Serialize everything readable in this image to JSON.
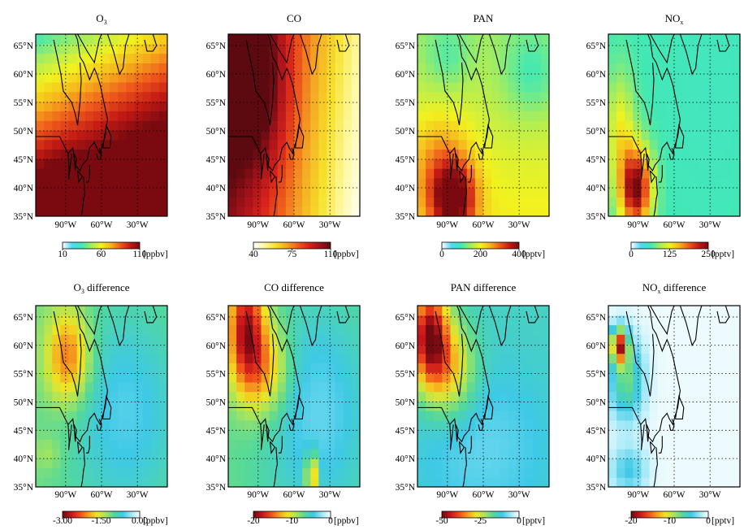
{
  "chart_data": [
    {
      "type": "heatmap",
      "title": "O₃",
      "title_base": "O",
      "title_sub": "3",
      "title_suffix": "",
      "field": "o3",
      "colormap": "jet_r",
      "colorbar": {
        "ticks": [
          "10",
          "60",
          "110"
        ],
        "unit": "[ppbv]",
        "range": [
          10,
          110
        ]
      },
      "xticks": [
        "90°W",
        "60°W",
        "30°W"
      ],
      "yticks": [
        "65°N",
        "60°N",
        "55°N",
        "50°N",
        "45°N",
        "40°N",
        "35°N"
      ],
      "xlim": [
        -115,
        -5
      ],
      "ylim": [
        35,
        67
      ]
    },
    {
      "type": "heatmap",
      "title": "CO",
      "title_base": "CO",
      "title_sub": "",
      "title_suffix": "",
      "field": "co",
      "colormap": "hot_r",
      "colorbar": {
        "ticks": [
          "40",
          "75",
          "110"
        ],
        "unit": "[ppbv]",
        "range": [
          40,
          110
        ]
      },
      "xticks": [
        "90°W",
        "60°W",
        "30°W"
      ],
      "yticks": [
        "65°N",
        "60°N",
        "55°N",
        "50°N",
        "45°N",
        "40°N",
        "35°N"
      ],
      "xlim": [
        -115,
        -5
      ],
      "ylim": [
        35,
        67
      ]
    },
    {
      "type": "heatmap",
      "title": "PAN",
      "title_base": "PAN",
      "title_sub": "",
      "title_suffix": "",
      "field": "pan",
      "colormap": "jet_r",
      "colorbar": {
        "ticks": [
          "0",
          "200",
          "400"
        ],
        "unit": "[pptv]",
        "range": [
          0,
          400
        ]
      },
      "xticks": [
        "90°W",
        "60°W",
        "30°W"
      ],
      "yticks": [
        "65°N",
        "60°N",
        "55°N",
        "50°N",
        "45°N",
        "40°N",
        "35°N"
      ],
      "xlim": [
        -115,
        -5
      ],
      "ylim": [
        35,
        67
      ]
    },
    {
      "type": "heatmap",
      "title": "NOₓ",
      "title_base": "NO",
      "title_sub": "x",
      "title_suffix": "",
      "field": "nox",
      "colormap": "jet_r",
      "colorbar": {
        "ticks": [
          "0",
          "125",
          "250"
        ],
        "unit": "[pptv]",
        "range": [
          0,
          250
        ]
      },
      "xticks": [
        "90°W",
        "60°W",
        "30°W"
      ],
      "yticks": [
        "65°N",
        "60°N",
        "55°N",
        "50°N",
        "45°N",
        "40°N",
        "35°N"
      ],
      "xlim": [
        -115,
        -5
      ],
      "ylim": [
        35,
        67
      ]
    },
    {
      "type": "heatmap",
      "title": "O₃ difference",
      "title_base": "O",
      "title_sub": "3",
      "title_suffix": " difference",
      "field": "do3",
      "colormap": "diff",
      "colorbar": {
        "ticks": [
          "-3.00",
          "-1.50",
          "0.00"
        ],
        "unit": "[ppbv]",
        "range": [
          -3,
          0
        ]
      },
      "xticks": [
        "90°W",
        "60°W",
        "30°W"
      ],
      "yticks": [
        "65°N",
        "60°N",
        "55°N",
        "50°N",
        "45°N",
        "40°N",
        "35°N"
      ],
      "xlim": [
        -115,
        -5
      ],
      "ylim": [
        35,
        67
      ]
    },
    {
      "type": "heatmap",
      "title": "CO difference",
      "title_base": "CO",
      "title_sub": "",
      "title_suffix": " difference",
      "field": "dco",
      "colormap": "diff",
      "colorbar": {
        "ticks": [
          "-20",
          "-10",
          "0"
        ],
        "unit": "[ppbv]",
        "range": [
          -20,
          0
        ]
      },
      "xticks": [
        "90°W",
        "60°W",
        "30°W"
      ],
      "yticks": [
        "65°N",
        "60°N",
        "55°N",
        "50°N",
        "45°N",
        "40°N",
        "35°N"
      ],
      "xlim": [
        -115,
        -5
      ],
      "ylim": [
        35,
        67
      ]
    },
    {
      "type": "heatmap",
      "title": "PAN difference",
      "title_base": "PAN",
      "title_sub": "",
      "title_suffix": " difference",
      "field": "dpan",
      "colormap": "diff",
      "colorbar": {
        "ticks": [
          "-50",
          "-25",
          "0"
        ],
        "unit": "[pptv]",
        "range": [
          -50,
          0
        ]
      },
      "xticks": [
        "90°W",
        "60°W",
        "30°W"
      ],
      "yticks": [
        "65°N",
        "60°N",
        "55°N",
        "50°N",
        "45°N",
        "40°N",
        "35°N"
      ],
      "xlim": [
        -115,
        -5
      ],
      "ylim": [
        35,
        67
      ]
    },
    {
      "type": "heatmap",
      "title": "NOₓ difference",
      "title_base": "NO",
      "title_sub": "x",
      "title_suffix": " difference",
      "field": "dnox",
      "colormap": "diff",
      "colorbar": {
        "ticks": [
          "-20",
          "-10",
          "0"
        ],
        "unit": "[pptv]",
        "range": [
          -20,
          0
        ]
      },
      "xticks": [
        "90°W",
        "60°W",
        "30°W"
      ],
      "yticks": [
        "65°N",
        "60°N",
        "55°N",
        "50°N",
        "45°N",
        "40°N",
        "35°N"
      ],
      "xlim": [
        -115,
        -5
      ],
      "ylim": [
        35,
        67
      ]
    }
  ],
  "gridlines": "dotted",
  "coastline_color": "#000000",
  "colormaps": {
    "jet_r": [
      "#ffffff",
      "#4fd8f5",
      "#42e8b4",
      "#a5ed5e",
      "#f2f21f",
      "#f6b41c",
      "#ef5a1c",
      "#c41a14",
      "#7a0a10"
    ],
    "hot_r": [
      "#ffffff",
      "#fff8a0",
      "#f6e22a",
      "#f4a824",
      "#ef5f1c",
      "#d9241a",
      "#a4121a",
      "#5c0a10"
    ],
    "diff": [
      "#6e0a10",
      "#c8141c",
      "#ef4a1a",
      "#f59d1e",
      "#f1e422",
      "#a8e55c",
      "#52d89c",
      "#3ec9e6",
      "#9fe8f7",
      "#ffffff"
    ]
  }
}
